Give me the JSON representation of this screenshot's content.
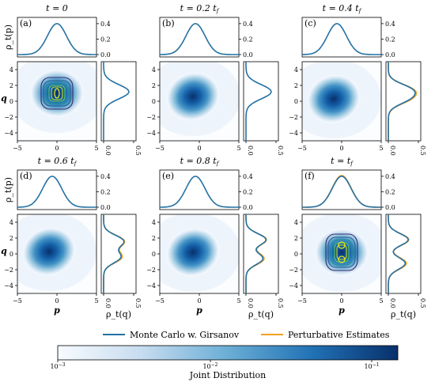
{
  "legend": {
    "mc_label": "Monte Carlo w. Girsanov",
    "pert_label": "Perturbative Estimates",
    "mc_color": "#2471a3",
    "pert_color": "#f0a020"
  },
  "colorbar": {
    "label": "Joint Distribution",
    "ticks": [
      "10−3",
      "10−2",
      "10−1"
    ],
    "cmap": [
      "#f7fbff",
      "#c6dbef",
      "#6baed6",
      "#2171b5",
      "#08306b"
    ]
  },
  "chart_data": [
    {
      "panel": "(a)",
      "title": "t = 0",
      "peak_q": [
        1.2
      ],
      "center": [
        0.0,
        1.0
      ],
      "contours": true
    },
    {
      "panel": "(b)",
      "title": "t = 0.2 t_f",
      "peak_q": [
        1.2
      ],
      "center": [
        -0.8,
        0.6
      ],
      "contours": false
    },
    {
      "panel": "(c)",
      "title": "t = 0.4 t_f",
      "peak_q": [
        1.5,
        0.3
      ],
      "center": [
        -1.0,
        0.3
      ],
      "contours": false
    },
    {
      "panel": "(d)",
      "title": "t = 0.6 t_f",
      "peak_q": [
        1.6,
        -0.4
      ],
      "center": [
        -1.0,
        0.3
      ],
      "contours": false
    },
    {
      "panel": "(e)",
      "title": "t = 0.8 t_f",
      "peak_q": [
        1.8,
        -0.6
      ],
      "center": [
        -0.8,
        0.2
      ],
      "contours": false
    },
    {
      "panel": "(f)",
      "title": "t = t_f",
      "peak_q": [
        1.8,
        -1.2
      ],
      "center": [
        0.0,
        0.2
      ],
      "contours": true
    }
  ],
  "axes": {
    "xlabel": "p",
    "ylabel": "q",
    "top_ylabel": "ρ_t(p)",
    "side_xlabel": "ρ_t(q)",
    "x_ticks": [
      "−5",
      "0",
      "5"
    ],
    "y_ticks": [
      "4",
      "2",
      "0",
      "−2",
      "−4"
    ],
    "top_ticks": [
      "0.4",
      "0.2",
      "0.0"
    ],
    "side_ticks": [
      "0.0",
      "0.5"
    ],
    "xlim": [
      -5,
      5
    ],
    "ylim": [
      -5,
      5
    ]
  }
}
